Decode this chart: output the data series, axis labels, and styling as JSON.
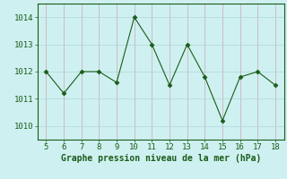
{
  "x": [
    5,
    6,
    7,
    8,
    9,
    10,
    11,
    12,
    13,
    14,
    15,
    16,
    17,
    18
  ],
  "y": [
    1012.0,
    1011.2,
    1012.0,
    1012.0,
    1011.6,
    1014.0,
    1013.0,
    1011.5,
    1013.0,
    1011.8,
    1010.2,
    1011.8,
    1012.0,
    1011.5
  ],
  "xlim": [
    4.5,
    18.5
  ],
  "ylim": [
    1009.5,
    1014.5
  ],
  "yticks": [
    1010,
    1011,
    1012,
    1013,
    1014
  ],
  "xticks": [
    5,
    6,
    7,
    8,
    9,
    10,
    11,
    12,
    13,
    14,
    15,
    16,
    17,
    18
  ],
  "xlabel": "Graphe pression niveau de la mer (hPa)",
  "line_color": "#1a5c1a",
  "marker": "D",
  "marker_size": 2.5,
  "bg_color": "#cff0f0",
  "grid_color": "#acd8d8",
  "tick_color": "#1a5c1a",
  "label_color": "#1a5c1a",
  "tick_fontsize": 6.5,
  "xlabel_fontsize": 7.0
}
